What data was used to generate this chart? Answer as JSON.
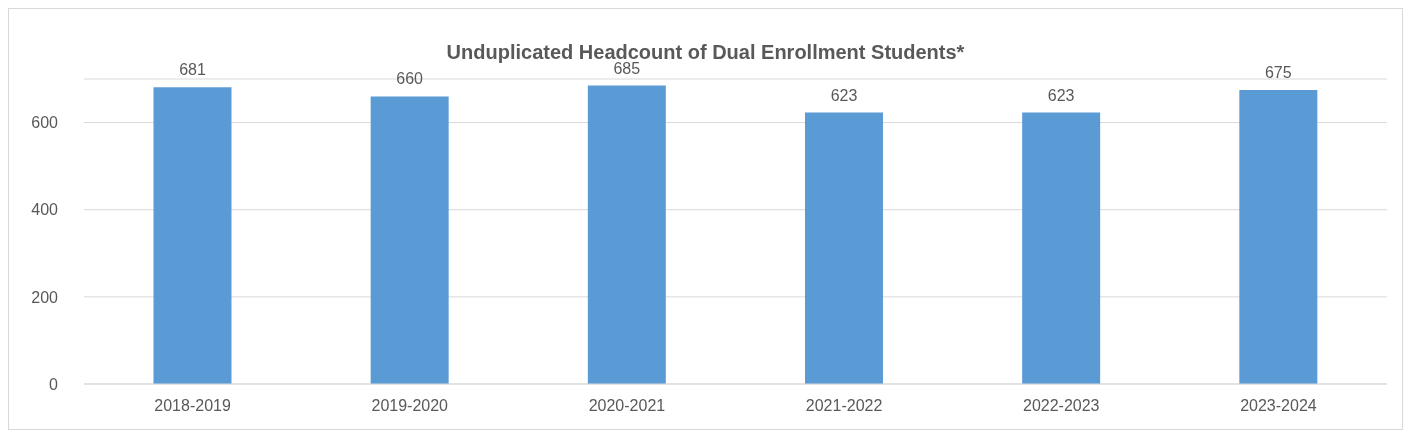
{
  "chart_data": {
    "type": "bar",
    "title": "Unduplicated Headcount of Dual Enrollment Students*",
    "categories": [
      "2018-2019",
      "2019-2020",
      "2020-2021",
      "2021-2022",
      "2022-2023",
      "2023-2024"
    ],
    "values": [
      681,
      660,
      685,
      623,
      623,
      675
    ],
    "color": "#5b9bd5",
    "ylim": [
      0,
      700
    ],
    "yticks": [
      0,
      200,
      400,
      600
    ],
    "grid": "y",
    "data_labels": true
  }
}
